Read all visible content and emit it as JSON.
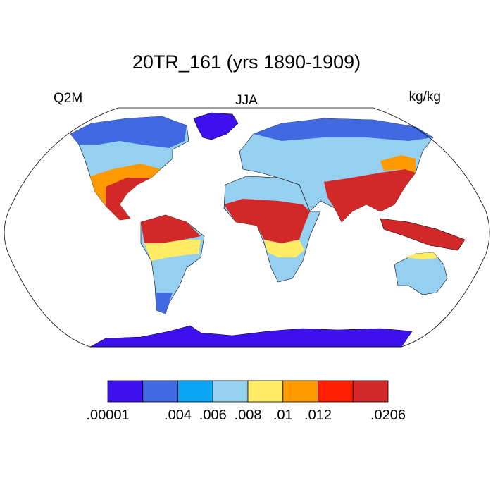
{
  "header": {
    "title": "20TR_161 (yrs 1890-1909)",
    "left": "Q2M",
    "center": "JJA",
    "right": "kg/kg"
  },
  "colorbar": {
    "colors": [
      "#3e10f0",
      "#4169e1",
      "#0aa5f5",
      "#96d0f0",
      "#ffeb64",
      "#ff9900",
      "#ff1e00",
      "#d22828"
    ],
    "labels": [
      ".00001",
      null,
      ".004",
      ".006",
      ".008",
      ".01",
      ".012",
      null,
      ".0206"
    ]
  }
}
